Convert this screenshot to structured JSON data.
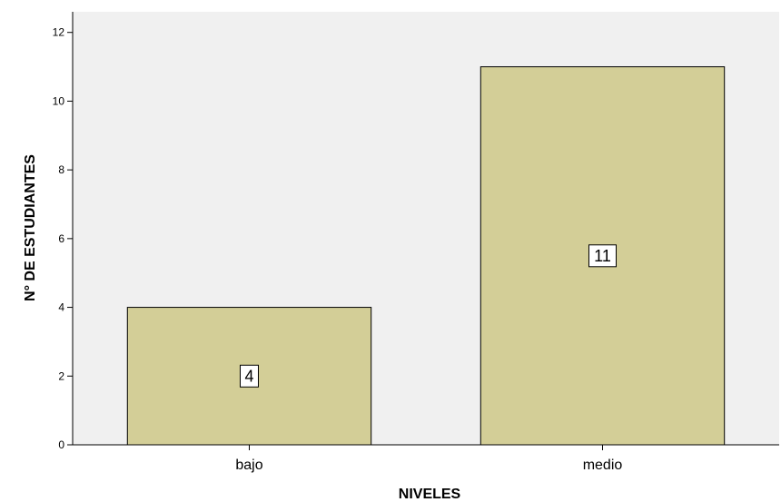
{
  "chart_data": {
    "type": "bar",
    "categories": [
      "bajo",
      "medio"
    ],
    "values": [
      4,
      11
    ],
    "data_labels": [
      "4",
      "11"
    ],
    "xlabel": "NIVELES",
    "ylabel": "N° DE ESTUDIANTES",
    "ylim": [
      0,
      12.6
    ],
    "yticks": [
      "0",
      "2",
      "4",
      "6",
      "8",
      "10",
      "12"
    ],
    "grid": false,
    "legend": "none",
    "colors": {
      "plot_background": "#f0f0f0",
      "bar_fill": "#d3ce97",
      "bar_stroke": "#000000",
      "axis": "#000000"
    }
  }
}
